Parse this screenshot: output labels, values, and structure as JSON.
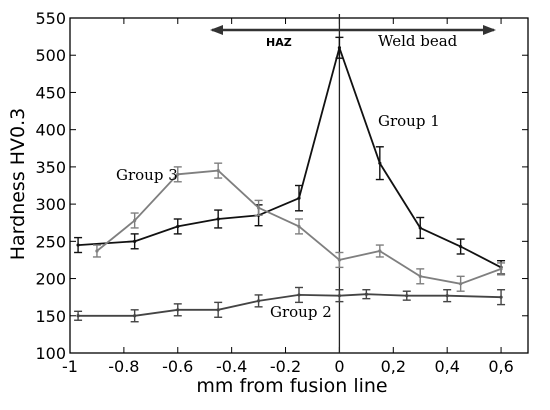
{
  "chart_data": {
    "type": "line",
    "title": "",
    "xlabel": "mm from fusion line",
    "ylabel": "Hardness HV0.3",
    "xlim": [
      -1,
      0.7
    ],
    "ylim": [
      100,
      550
    ],
    "x_ticks": [
      -1,
      -0.8,
      -0.6,
      -0.4,
      -0.2,
      0,
      0.2,
      0.4,
      0.6
    ],
    "x_tick_labels": [
      "-1",
      "-0.8",
      "-0.6",
      "-0.4",
      "-0.2",
      "0",
      "0,2",
      "0,4",
      "0,6"
    ],
    "y_ticks": [
      100,
      150,
      200,
      250,
      300,
      350,
      400,
      450,
      500,
      550
    ],
    "y_tick_labels": [
      "100",
      "150",
      "200",
      "250",
      "300",
      "350",
      "400",
      "450",
      "500",
      "550"
    ],
    "grid": false,
    "legend": "none",
    "annotations": {
      "haz": "HAZ",
      "weld_bead": "Weld bead"
    },
    "series": [
      {
        "name": "Group 1",
        "color": "#111111",
        "x": [
          -0.97,
          -0.76,
          -0.6,
          -0.45,
          -0.3,
          -0.15,
          0,
          0.15,
          0.3,
          0.45,
          0.6
        ],
        "y": [
          245,
          250,
          270,
          280,
          285,
          308,
          510,
          355,
          268,
          243,
          215
        ],
        "err": [
          10,
          10,
          10,
          12,
          14,
          17,
          14,
          22,
          14,
          10,
          9
        ]
      },
      {
        "name": "Group 2",
        "color": "#444444",
        "x": [
          -0.97,
          -0.76,
          -0.6,
          -0.45,
          -0.3,
          -0.15,
          0,
          0.1,
          0.25,
          0.4,
          0.6
        ],
        "y": [
          150,
          150,
          158,
          158,
          170,
          178,
          177,
          179,
          177,
          177,
          175
        ],
        "err": [
          6,
          8,
          8,
          10,
          8,
          10,
          8,
          6,
          6,
          8,
          10
        ]
      },
      {
        "name": "Group 3",
        "color": "#7f7f7f",
        "x": [
          -0.9,
          -0.76,
          -0.6,
          -0.45,
          -0.3,
          -0.15,
          0,
          0.15,
          0.3,
          0.45,
          0.6
        ],
        "y": [
          237,
          278,
          340,
          345,
          295,
          270,
          225,
          237,
          203,
          193,
          213
        ],
        "err": [
          8,
          10,
          10,
          10,
          10,
          10,
          10,
          8,
          10,
          10,
          8
        ]
      }
    ]
  }
}
